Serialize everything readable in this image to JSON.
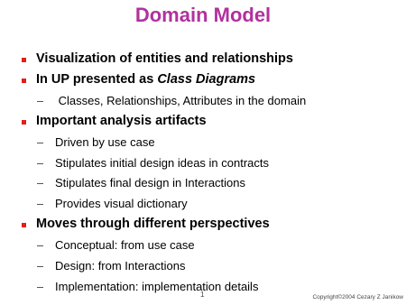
{
  "title": "Domain Model",
  "bullets": [
    {
      "text": [
        {
          "t": "Visualization of entities and relationships"
        }
      ],
      "sub": []
    },
    {
      "text": [
        {
          "t": "In UP presented as "
        },
        {
          "t": "Class Diagrams",
          "italic": true
        }
      ],
      "sub": [
        " Classes, Relationships, Attributes in the domain"
      ]
    },
    {
      "text": [
        {
          "t": "Important analysis artifacts"
        }
      ],
      "sub": [
        "Driven by use case",
        "Stipulates initial design ideas in contracts",
        "Stipulates final design in Interactions",
        "Provides visual dictionary"
      ]
    },
    {
      "text": [
        {
          "t": "Moves through different perspectives"
        }
      ],
      "sub": [
        "Conceptual: from use case",
        "Design: from Interactions",
        "Implementation: implementation details"
      ]
    }
  ],
  "footer": {
    "page": "1",
    "copyright": "Copyright©2004 Cezary Z Janikow"
  }
}
